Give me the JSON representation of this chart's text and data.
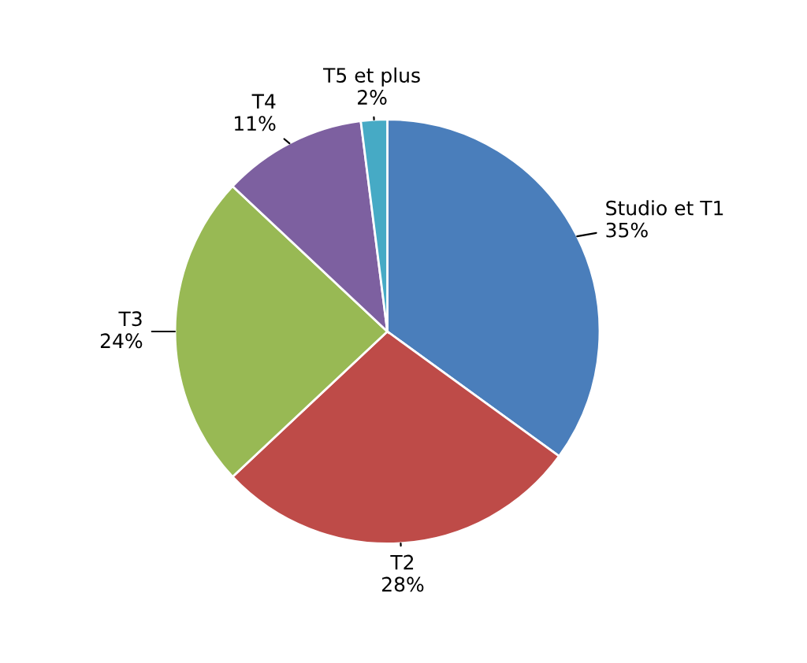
{
  "chart_data": {
    "type": "pie",
    "categories": [
      "Studio et T1",
      "T2",
      "T3",
      "T4",
      "T5 et plus"
    ],
    "values": [
      35,
      28,
      24,
      11,
      2
    ],
    "value_labels": [
      "35%",
      "28%",
      "24%",
      "11%",
      "2%"
    ],
    "colors": [
      "#4a7ebb",
      "#be4b48",
      "#98b954",
      "#7d60a0",
      "#46aac5"
    ]
  }
}
